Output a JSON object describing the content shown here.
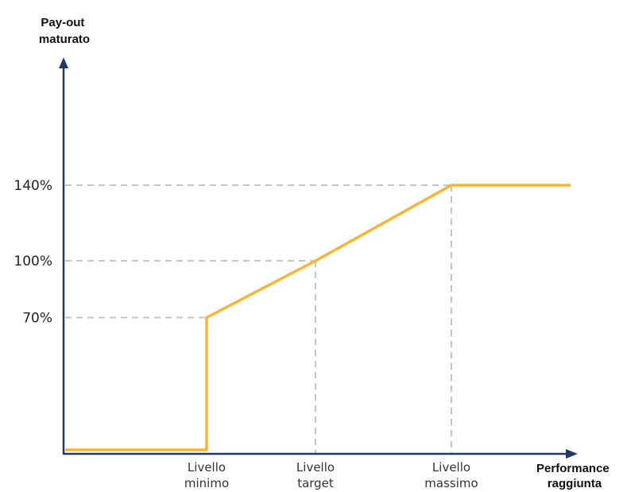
{
  "chart_data": {
    "type": "line",
    "ylabel": [
      "Pay-out",
      "maturato"
    ],
    "xlabel": [
      "Performance",
      "raggiunta"
    ],
    "y_ticks": [
      {
        "label": "70%",
        "value": 70
      },
      {
        "label": "100%",
        "value": 100
      },
      {
        "label": "140%",
        "value": 140
      }
    ],
    "x_ticks": [
      {
        "lines": [
          "Livello",
          "minimo"
        ]
      },
      {
        "lines": [
          "Livello",
          "target"
        ]
      },
      {
        "lines": [
          "Livello",
          "massimo"
        ]
      }
    ],
    "series": [
      {
        "color": "#f5b731",
        "points": [
          {
            "x": "start",
            "y": 0
          },
          {
            "x": "Livello minimo",
            "y": 0
          },
          {
            "x": "Livello minimo",
            "y": 70
          },
          {
            "x": "Livello target",
            "y": 100
          },
          {
            "x": "Livello massimo",
            "y": 140
          },
          {
            "x": "end",
            "y": 140
          }
        ]
      }
    ],
    "grid": "dashed guides at tick levels",
    "axis_color": "#1f3b63",
    "guide_color": "#c4c4c4"
  }
}
